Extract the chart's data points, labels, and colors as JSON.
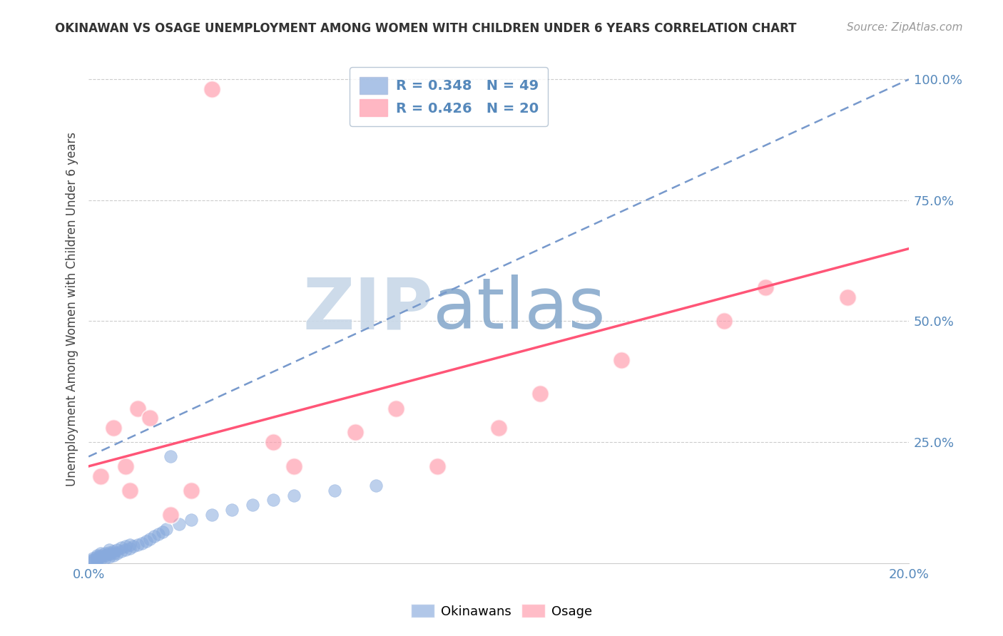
{
  "title": "OKINAWAN VS OSAGE UNEMPLOYMENT AMONG WOMEN WITH CHILDREN UNDER 6 YEARS CORRELATION CHART",
  "source": "Source: ZipAtlas.com",
  "ylabel": "Unemployment Among Women with Children Under 6 years",
  "xlim": [
    0.0,
    0.2
  ],
  "ylim": [
    0.0,
    1.05
  ],
  "ytick_positions": [
    0.0,
    0.25,
    0.5,
    0.75,
    1.0
  ],
  "ytick_labels": [
    "",
    "25.0%",
    "50.0%",
    "75.0%",
    "100.0%"
  ],
  "okinawan_R": 0.348,
  "okinawan_N": 49,
  "osage_R": 0.426,
  "osage_N": 20,
  "okinawan_color": "#88AADD",
  "osage_color": "#FF99AA",
  "okinawan_line_color": "#7799CC",
  "osage_line_color": "#FF5577",
  "watermark_zip": "ZIP",
  "watermark_atlas": "atlas",
  "watermark_color_zip": "#C8D8E8",
  "watermark_color_atlas": "#88AACC",
  "legend_edge_color": "#AABBCC",
  "ok_x": [
    0.001,
    0.001,
    0.001,
    0.001,
    0.002,
    0.002,
    0.002,
    0.002,
    0.003,
    0.003,
    0.003,
    0.003,
    0.004,
    0.004,
    0.004,
    0.005,
    0.005,
    0.005,
    0.005,
    0.006,
    0.006,
    0.006,
    0.007,
    0.007,
    0.008,
    0.008,
    0.009,
    0.009,
    0.01,
    0.01,
    0.011,
    0.012,
    0.013,
    0.014,
    0.015,
    0.016,
    0.017,
    0.018,
    0.019,
    0.02,
    0.022,
    0.025,
    0.03,
    0.035,
    0.04,
    0.045,
    0.05,
    0.06,
    0.07
  ],
  "ok_y": [
    0.003,
    0.005,
    0.007,
    0.01,
    0.005,
    0.008,
    0.012,
    0.015,
    0.008,
    0.012,
    0.016,
    0.02,
    0.01,
    0.015,
    0.02,
    0.012,
    0.018,
    0.022,
    0.028,
    0.015,
    0.02,
    0.025,
    0.02,
    0.028,
    0.025,
    0.032,
    0.028,
    0.035,
    0.03,
    0.038,
    0.035,
    0.038,
    0.04,
    0.045,
    0.05,
    0.055,
    0.06,
    0.065,
    0.07,
    0.22,
    0.08,
    0.09,
    0.1,
    0.11,
    0.12,
    0.13,
    0.14,
    0.15,
    0.16
  ],
  "os_x": [
    0.003,
    0.006,
    0.009,
    0.01,
    0.012,
    0.015,
    0.02,
    0.025,
    0.03,
    0.045,
    0.05,
    0.065,
    0.075,
    0.085,
    0.1,
    0.11,
    0.13,
    0.155,
    0.165,
    0.185
  ],
  "os_y": [
    0.18,
    0.28,
    0.2,
    0.15,
    0.32,
    0.3,
    0.1,
    0.15,
    0.98,
    0.25,
    0.2,
    0.27,
    0.32,
    0.2,
    0.28,
    0.35,
    0.42,
    0.5,
    0.57,
    0.55
  ],
  "ok_line_x0": 0.0,
  "ok_line_y0": 0.22,
  "ok_line_x1": 0.2,
  "ok_line_y1": 1.0,
  "os_line_x0": 0.0,
  "os_line_y0": 0.2,
  "os_line_x1": 0.2,
  "os_line_y1": 0.65
}
